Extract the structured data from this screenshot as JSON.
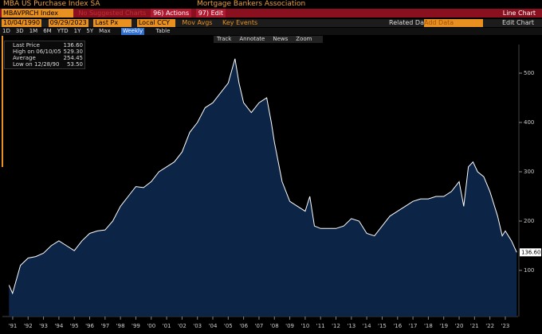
{
  "ui": {
    "title": "MBA US Purchase Index SA",
    "source": "Mortgage Bankers Association",
    "ticker": "MBAVPRCH Index",
    "suggest": "No Suggested Charts",
    "actions": "96) Actions",
    "edit": "97) Edit",
    "chart_kind": "Line Chart",
    "start_date": "10/04/1990",
    "end_date": "09/29/2023",
    "field": "Last Px",
    "currency": "Local CCY",
    "mov_avgs": "Mov Avgs",
    "key_events": "Key Events",
    "related": "Related Dat",
    "add_data": "Add Data",
    "edit_chart": "Edit Chart",
    "ranges": [
      "1D",
      "3D",
      "1M",
      "6M",
      "YTD",
      "1Y",
      "5Y",
      "Max"
    ],
    "frequency": "Weekly",
    "table": "Table",
    "tools": [
      "Track",
      "Annotate",
      "News",
      "Zoom"
    ]
  },
  "chart_data": {
    "type": "line",
    "legend": [
      {
        "label": "Last Price",
        "value": "136.60"
      },
      {
        "label": "High on 06/10/05",
        "value": "529.30"
      },
      {
        "label": "Average",
        "value": "254.45"
      },
      {
        "label": "Low on 12/28/90",
        "value": "53.50"
      }
    ],
    "series": [
      {
        "name": "Last Price",
        "color": "#ffffff",
        "x": [
          1990.76,
          1990.99,
          1991.5,
          1992,
          1992.5,
          1993,
          1993.5,
          1994,
          1994.5,
          1995,
          1995.5,
          1996,
          1996.5,
          1997,
          1997.5,
          1998,
          1998.5,
          1999,
          1999.5,
          2000,
          2000.5,
          2001,
          2001.5,
          2002,
          2002.5,
          2003,
          2003.5,
          2004,
          2004.5,
          2005,
          2005.44,
          2005.7,
          2006,
          2006.5,
          2007,
          2007.5,
          2007.8,
          2008,
          2008.5,
          2009,
          2009.5,
          2010,
          2010.3,
          2010.6,
          2011,
          2011.5,
          2012,
          2012.5,
          2013,
          2013.5,
          2014,
          2014.5,
          2015,
          2015.5,
          2016,
          2016.5,
          2017,
          2017.5,
          2018,
          2018.5,
          2019,
          2019.5,
          2020,
          2020.3,
          2020.6,
          2020.9,
          2021.2,
          2021.6,
          2022,
          2022.5,
          2022.8,
          2023,
          2023.4,
          2023.74
        ],
        "values": [
          70,
          53.5,
          110,
          125,
          128,
          135,
          150,
          160,
          150,
          140,
          160,
          175,
          180,
          182,
          200,
          230,
          250,
          270,
          268,
          280,
          300,
          310,
          320,
          340,
          380,
          400,
          430,
          440,
          460,
          480,
          529.3,
          480,
          440,
          420,
          440,
          450,
          400,
          360,
          280,
          240,
          230,
          220,
          250,
          190,
          185,
          185,
          185,
          190,
          205,
          200,
          175,
          170,
          190,
          210,
          220,
          230,
          240,
          245,
          245,
          250,
          250,
          260,
          280,
          230,
          310,
          320,
          300,
          290,
          260,
          210,
          170,
          180,
          160,
          136.6
        ]
      }
    ],
    "xlim": [
      1990.33,
      2023.83
    ],
    "ylim": [
      0,
      580
    ],
    "yticks": [
      100,
      200,
      300,
      400,
      500
    ],
    "xticks": [
      {
        "value": 1991,
        "label": "'91"
      },
      {
        "value": 1992,
        "label": "'92"
      },
      {
        "value": 1993,
        "label": "'93"
      },
      {
        "value": 1994,
        "label": "'94"
      },
      {
        "value": 1995,
        "label": "'95"
      },
      {
        "value": 1996,
        "label": "'96"
      },
      {
        "value": 1997,
        "label": "'97"
      },
      {
        "value": 1998,
        "label": "'98"
      },
      {
        "value": 1999,
        "label": "'99"
      },
      {
        "value": 2000,
        "label": "'00"
      },
      {
        "value": 2001,
        "label": "'01"
      },
      {
        "value": 2002,
        "label": "'02"
      },
      {
        "value": 2003,
        "label": "'03"
      },
      {
        "value": 2004,
        "label": "'04"
      },
      {
        "value": 2005,
        "label": "'05"
      },
      {
        "value": 2006,
        "label": "'06"
      },
      {
        "value": 2007,
        "label": "'07"
      },
      {
        "value": 2008,
        "label": "'08"
      },
      {
        "value": 2009,
        "label": "'09"
      },
      {
        "value": 2010,
        "label": "'10"
      },
      {
        "value": 2011,
        "label": "'11"
      },
      {
        "value": 2012,
        "label": "'12"
      },
      {
        "value": 2013,
        "label": "'13"
      },
      {
        "value": 2014,
        "label": "'14"
      },
      {
        "value": 2015,
        "label": "'15"
      },
      {
        "value": 2016,
        "label": "'16"
      },
      {
        "value": 2017,
        "label": "'17"
      },
      {
        "value": 2018,
        "label": "'18"
      },
      {
        "value": 2019,
        "label": "'19"
      },
      {
        "value": 2020,
        "label": "'20"
      },
      {
        "value": 2021,
        "label": "'21"
      },
      {
        "value": 2022,
        "label": "'22"
      },
      {
        "value": 2023,
        "label": "'23"
      }
    ],
    "area_color": "#0c2547"
  }
}
